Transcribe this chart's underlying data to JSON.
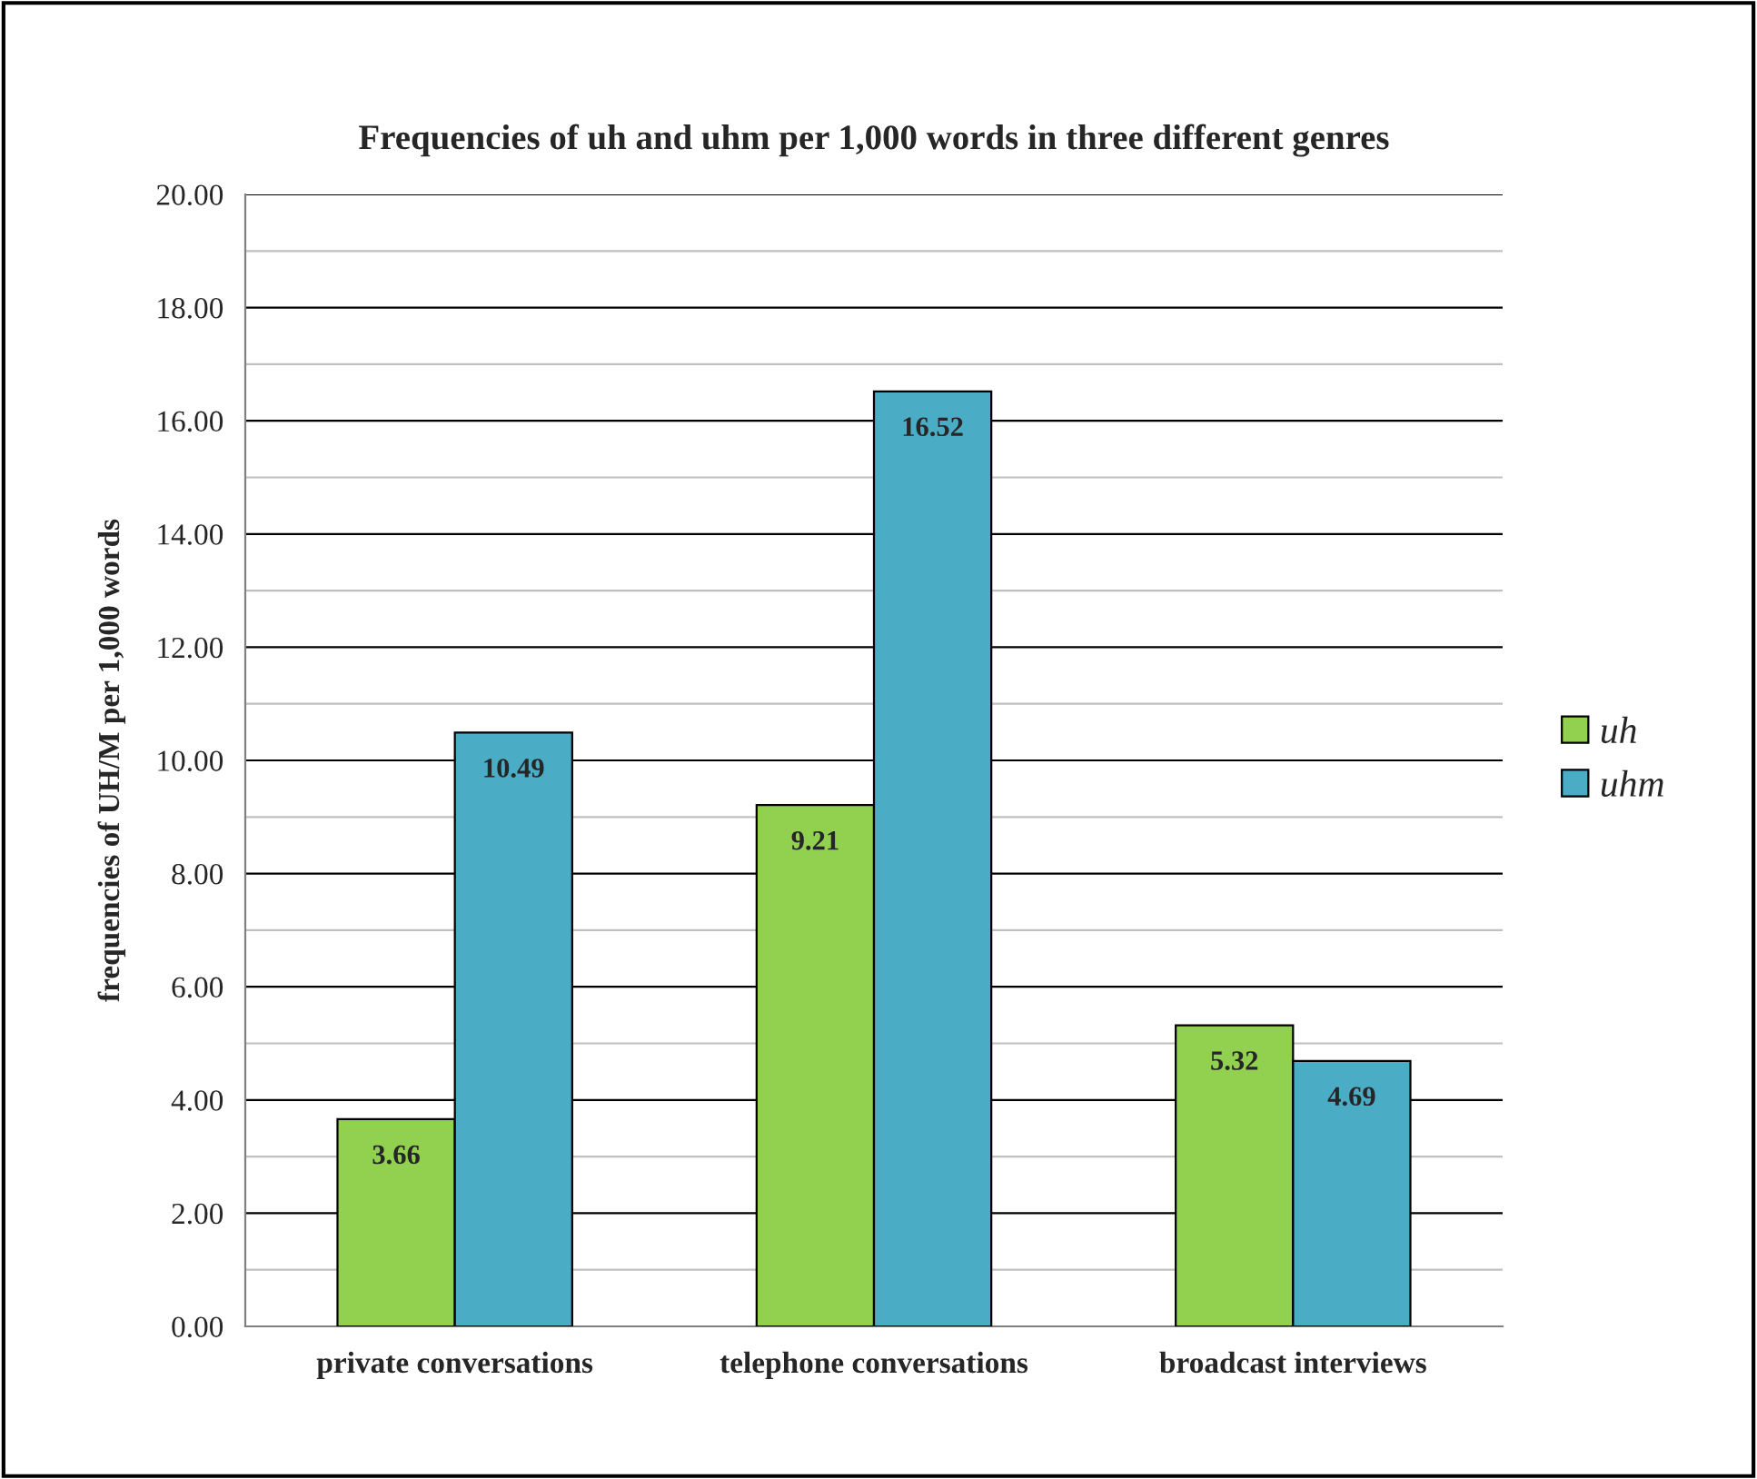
{
  "chart_data": {
    "type": "bar",
    "title": "Frequencies of uh and uhm per 1,000 words in three different genres",
    "ylabel": "frequencies of UH/M per 1,000 words",
    "categories": [
      "private conversations",
      "telephone conversations",
      "broadcast interviews"
    ],
    "series": [
      {
        "name": "uh",
        "color": "#92d050",
        "values": [
          3.66,
          9.21,
          5.32
        ]
      },
      {
        "name": "uhm",
        "color": "#4bacc6",
        "values": [
          10.49,
          16.52,
          4.69
        ]
      }
    ],
    "ylim": [
      0,
      20
    ],
    "yticks": [
      {
        "value": 0,
        "label": "0.00"
      },
      {
        "value": 1,
        "label": null
      },
      {
        "value": 2,
        "label": "2.00"
      },
      {
        "value": 3,
        "label": null
      },
      {
        "value": 4,
        "label": "4.00"
      },
      {
        "value": 5,
        "label": null
      },
      {
        "value": 6,
        "label": "6.00"
      },
      {
        "value": 7,
        "label": null
      },
      {
        "value": 8,
        "label": "8.00"
      },
      {
        "value": 9,
        "label": null
      },
      {
        "value": 10,
        "label": "10.00"
      },
      {
        "value": 11,
        "label": null
      },
      {
        "value": 12,
        "label": "12.00"
      },
      {
        "value": 13,
        "label": null
      },
      {
        "value": 14,
        "label": "14.00"
      },
      {
        "value": 15,
        "label": null
      },
      {
        "value": 16,
        "label": "16.00"
      },
      {
        "value": 17,
        "label": null
      },
      {
        "value": 18,
        "label": "18.00"
      },
      {
        "value": 19,
        "label": null
      },
      {
        "value": 20,
        "label": "20.00"
      }
    ],
    "grid": "y",
    "legend": "right",
    "data_labels": true
  }
}
